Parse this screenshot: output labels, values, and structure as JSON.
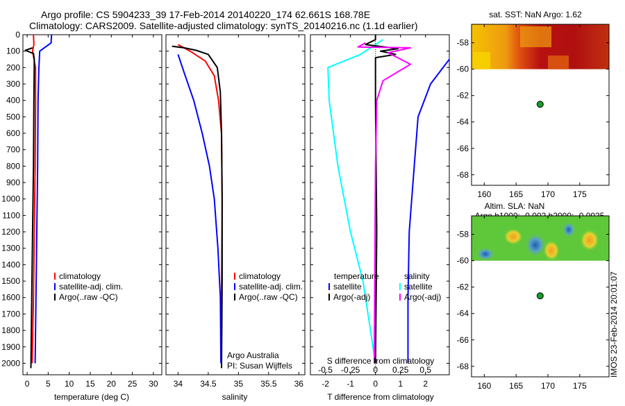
{
  "header": {
    "line1": "Argo profile: CS 5904233_39 17-Feb-2014 20140220_174 62.661S 168.78E",
    "line2": "Climatology: CARS2009. Satellite-adjusted climatology: synTS_20140216.nc (1.1d earlier)"
  },
  "colors": {
    "climatology": "#ff0000",
    "satellite": "#0000ff",
    "argo": "#000000",
    "temp_sat": "#00ffff",
    "sal_argo": "#ff00ff",
    "argo_marker": "#1a9b2a"
  },
  "depth_ticks": [
    "0",
    "100",
    "200",
    "300",
    "400",
    "500",
    "600",
    "700",
    "800",
    "900",
    "1000",
    "1100",
    "1200",
    "1300",
    "1400",
    "1500",
    "1600",
    "1700",
    "1800",
    "1900",
    "2000"
  ],
  "chart_data": [
    {
      "type": "line",
      "name": "temperature-panel",
      "xlabel": "temperature (deg C)",
      "ylabel": "depth (dbar)",
      "xlim": [
        -1,
        32
      ],
      "ylim": [
        2070,
        0
      ],
      "xticks": [
        "0",
        "5",
        "10",
        "15",
        "20",
        "25",
        "30"
      ],
      "legend": [
        "climatology",
        "satellite-adj. clim.",
        "Argo(..raw -QC)"
      ],
      "series": [
        {
          "name": "climatology",
          "points": [
            [
              1.5,
              0
            ],
            [
              1.6,
              60
            ],
            [
              1.3,
              100
            ],
            [
              1.7,
              160
            ],
            [
              2.0,
              200
            ],
            [
              2.0,
              400
            ],
            [
              1.9,
              800
            ],
            [
              1.7,
              1200
            ],
            [
              1.5,
              1600
            ],
            [
              1.2,
              2000
            ]
          ]
        },
        {
          "name": "satellite-adj. clim.",
          "points": [
            [
              5.8,
              0
            ],
            [
              5.7,
              50
            ],
            [
              3.0,
              100
            ],
            [
              2.8,
              200
            ],
            [
              2.6,
              400
            ],
            [
              2.5,
              800
            ],
            [
              2.3,
              1200
            ],
            [
              2.1,
              1600
            ],
            [
              1.9,
              2000
            ]
          ]
        },
        {
          "name": "Argo",
          "points": [
            [
              1.3,
              80
            ],
            [
              -0.4,
              95
            ],
            [
              1.5,
              115
            ],
            [
              1.7,
              150
            ],
            [
              1.6,
              400
            ],
            [
              1.5,
              800
            ],
            [
              1.3,
              1200
            ],
            [
              1.1,
              1600
            ],
            [
              0.9,
              2030
            ]
          ]
        }
      ]
    },
    {
      "type": "line",
      "name": "salinity-panel",
      "xlabel": "salinity",
      "xlim": [
        33.8,
        36.1
      ],
      "ylim": [
        2070,
        0
      ],
      "xticks": [
        "34",
        "34.5",
        "35",
        "35.5",
        "36"
      ],
      "legend": [
        "climatology",
        "satellite-adj. clim.",
        "Argo(..raw -QC)"
      ],
      "annotation": [
        "Argo Australia",
        "PI: Susan Wijffels"
      ],
      "series": [
        {
          "name": "climatology",
          "points": [
            [
              34.0,
              60
            ],
            [
              34.2,
              100
            ],
            [
              34.45,
              160
            ],
            [
              34.6,
              250
            ],
            [
              34.67,
              400
            ],
            [
              34.72,
              600
            ],
            [
              34.73,
              1000
            ],
            [
              34.72,
              1600
            ],
            [
              34.72,
              2030
            ]
          ]
        },
        {
          "name": "satellite-adj. clim.",
          "points": [
            [
              34.0,
              120
            ],
            [
              34.1,
              230
            ],
            [
              34.26,
              400
            ],
            [
              34.4,
              600
            ],
            [
              34.52,
              800
            ],
            [
              34.6,
              1000
            ],
            [
              34.66,
              1300
            ],
            [
              34.7,
              1600
            ],
            [
              34.71,
              2000
            ]
          ]
        },
        {
          "name": "Argo",
          "points": [
            [
              33.9,
              70
            ],
            [
              34.1,
              80
            ],
            [
              34.3,
              95
            ],
            [
              34.5,
              120
            ],
            [
              34.65,
              200
            ],
            [
              34.7,
              350
            ],
            [
              34.72,
              600
            ],
            [
              34.73,
              1000
            ],
            [
              34.73,
              1500
            ],
            [
              34.72,
              2030
            ]
          ]
        }
      ]
    },
    {
      "type": "line",
      "name": "difference-panel",
      "xlabel": "T difference from climatology",
      "xlabel_top": "S difference from climatology",
      "xlim": [
        -2.6,
        2.95
      ],
      "ylim": [
        2070,
        0
      ],
      "xticks": [
        "-2",
        "-1",
        "0",
        "1",
        "2"
      ],
      "xticks_top": [
        "-0.5",
        "-0.25",
        "0",
        "0.25",
        "0.5"
      ],
      "legend_titles": [
        "temperature",
        "salinity"
      ],
      "legend_left": [
        "satellite",
        "Argo(-adj)"
      ],
      "legend_right": [
        "satellite",
        "Argo(-adj)"
      ],
      "series": [
        {
          "name": "temperature satellite",
          "points": [
            [
              0.3,
              30
            ],
            [
              -0.6,
              120
            ],
            [
              -1.9,
              200
            ],
            [
              -1.85,
              400
            ],
            [
              -1.5,
              800
            ],
            [
              -1.0,
              1200
            ],
            [
              -0.5,
              1500
            ],
            [
              0.0,
              2000
            ]
          ]
        },
        {
          "name": "salinity satellite",
          "points": [
            [
              2.95,
              150
            ],
            [
              2.2,
              300
            ],
            [
              1.7,
              500
            ],
            [
              1.55,
              800
            ],
            [
              1.35,
              1200
            ],
            [
              1.3,
              1600
            ],
            [
              1.3,
              2000
            ]
          ]
        },
        {
          "name": "temperature Argo",
          "points": [
            [
              0.0,
              0
            ],
            [
              0.0,
              30
            ],
            [
              -0.4,
              60
            ],
            [
              0.9,
              85
            ],
            [
              0.2,
              100
            ],
            [
              0.8,
              120
            ],
            [
              0.0,
              140
            ],
            [
              0.0,
              400
            ],
            [
              0.05,
              1200
            ],
            [
              0.0,
              2000
            ]
          ]
        },
        {
          "name": "salinity Argo",
          "points": [
            [
              -0.4,
              50
            ],
            [
              -0.7,
              75
            ],
            [
              1.4,
              80
            ],
            [
              0.5,
              110
            ],
            [
              1.4,
              180
            ],
            [
              0.3,
              280
            ],
            [
              0.05,
              400
            ],
            [
              0.0,
              800
            ],
            [
              -0.05,
              2000
            ]
          ]
        }
      ]
    }
  ],
  "sst_map": {
    "title": "sat. SST: NaN Argo: 1.62",
    "yticks": [
      "-58",
      "-60",
      "-62",
      "-64",
      "-66",
      "-68"
    ],
    "xticks": [
      "160",
      "165",
      "170",
      "175"
    ],
    "argo_lon": 168.78,
    "argo_lat": -62.661
  },
  "sla_map": {
    "title1": "Altim. SLA: NaN",
    "title2": "Argo h1000: -0.002 h2000: -0.0025",
    "yticks": [
      "-58",
      "-60",
      "-62",
      "-64",
      "-66",
      "-68"
    ],
    "xticks": [
      "160",
      "165",
      "170",
      "175"
    ],
    "argo_lon": 168.78,
    "argo_lat": -62.661
  },
  "stamp": "IMOS 23-Feb-2014 20:01:07"
}
